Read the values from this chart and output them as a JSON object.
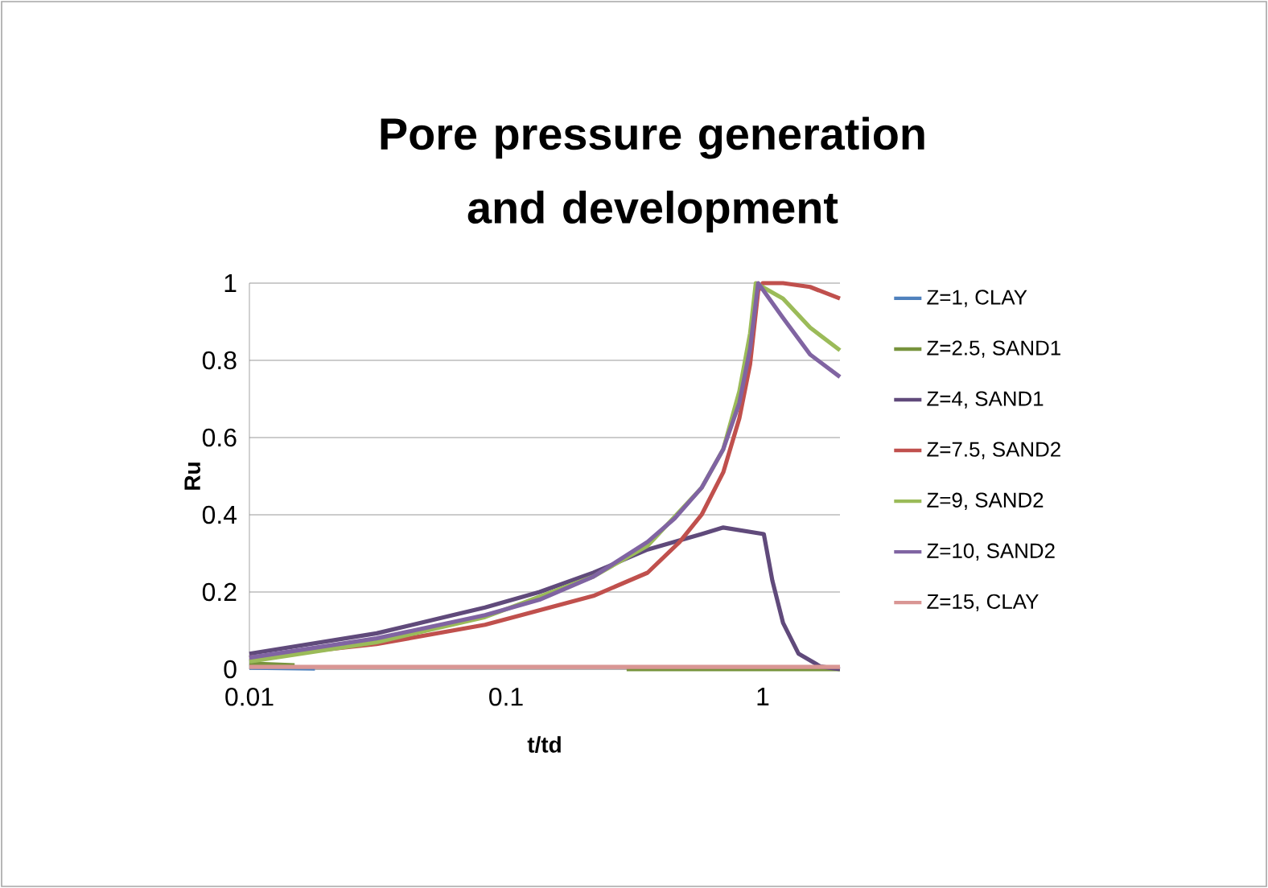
{
  "chart_data": {
    "type": "line",
    "title": "Pore pressure generation and development",
    "xlabel": "t/td",
    "ylabel": "Ru",
    "log": "x",
    "xlim": [
      0.01,
      2
    ],
    "xticks": [
      0.01,
      0.1,
      1
    ],
    "ylim": [
      0,
      1
    ],
    "yticks": [
      0,
      0.2,
      0.4,
      0.6,
      0.8,
      1
    ],
    "grid": "y",
    "legend": "right",
    "marker": "none",
    "line_style": "solid",
    "series": [
      {
        "name": "Z=1, CLAY",
        "color": "#4f81bd",
        "x": [
          0.01,
          0.018
        ],
        "values": [
          0.004,
          0.002
        ]
      },
      {
        "name": "Z=2.5, SAND1",
        "color": "#77933c",
        "x": [
          0.01,
          0.015,
          0.05,
          0.295,
          0.578,
          1.0,
          2
        ],
        "values": [
          0.015,
          0.01,
          null,
          0,
          0,
          0,
          0
        ]
      },
      {
        "name": "Z=4, SAND1",
        "color": "#604a7b",
        "x": [
          0.01,
          0.0313,
          0.0828,
          0.135,
          0.219,
          0.356,
          0.578,
          0.702,
          1.01,
          1.09,
          1.2,
          1.38,
          1.68,
          2
        ],
        "values": [
          0.04,
          0.093,
          0.16,
          0.2,
          0.25,
          0.31,
          0.35,
          0.367,
          0.35,
          0.23,
          0.12,
          0.04,
          0.007,
          0
        ]
      },
      {
        "name": "Z=7.5, SAND2",
        "color": "#c0504d",
        "x": [
          0.01,
          0.0313,
          0.0828,
          0.219,
          0.356,
          0.475,
          0.578,
          0.702,
          0.811,
          0.893,
          0.96,
          1.0,
          1.2,
          1.53,
          2
        ],
        "values": [
          0.03,
          0.065,
          0.115,
          0.19,
          0.25,
          0.33,
          0.4,
          0.51,
          0.65,
          0.79,
          0.98,
          1,
          1,
          0.99,
          0.96
        ]
      },
      {
        "name": "Z=9, SAND2",
        "color": "#9bbb59",
        "x": [
          0.01,
          0.0313,
          0.0828,
          0.219,
          0.356,
          0.578,
          0.702,
          0.811,
          0.893,
          0.94,
          1.2,
          1.53,
          2
        ],
        "values": [
          0.02,
          0.07,
          0.135,
          0.24,
          0.32,
          0.47,
          0.57,
          0.72,
          0.87,
          1,
          0.96,
          0.885,
          0.826
        ]
      },
      {
        "name": "Z=10, SAND2",
        "color": "#8064a2",
        "x": [
          0.01,
          0.0313,
          0.0828,
          0.135,
          0.219,
          0.356,
          0.453,
          0.578,
          0.702,
          0.811,
          0.893,
          0.96,
          1.2,
          1.53,
          2
        ],
        "values": [
          0.03,
          0.08,
          0.14,
          0.18,
          0.24,
          0.33,
          0.39,
          0.47,
          0.57,
          0.69,
          0.83,
          1,
          0.91,
          0.815,
          0.757
        ]
      },
      {
        "name": "Z=15, CLAY",
        "color": "#d99694",
        "x": [
          0.01,
          0.0828,
          0.356,
          1.0,
          2
        ],
        "values": [
          0.006,
          0.006,
          0.006,
          0.006,
          0.006
        ]
      }
    ]
  }
}
